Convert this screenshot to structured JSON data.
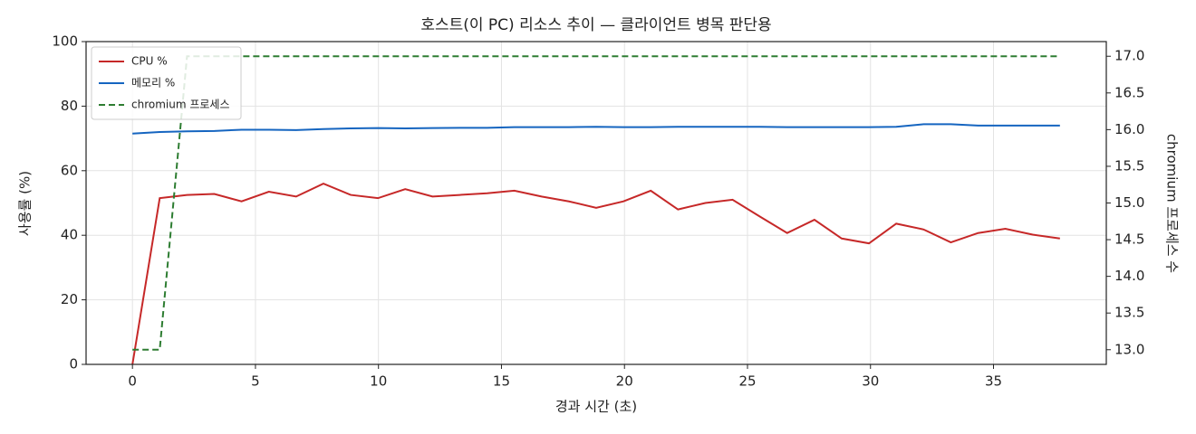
{
  "chart_data": {
    "type": "line",
    "title": "호스트(이 PC) 리소스 추이 — 클라이언트 병목 판단용",
    "xlabel": "경과 시간 (초)",
    "ylabel": "사용률 (%)",
    "y2label": "chromium 프로세스 수",
    "x": [
      0,
      1.109,
      2.218,
      3.326,
      4.435,
      5.544,
      6.653,
      7.762,
      8.871,
      9.979,
      11.088,
      12.197,
      13.306,
      14.415,
      15.524,
      16.632,
      17.741,
      18.85,
      19.959,
      21.068,
      22.176,
      23.285,
      24.394,
      25.503,
      26.612,
      27.721,
      28.829,
      29.938,
      31.047,
      32.156,
      33.265,
      34.374,
      35.482,
      36.591,
      37.7
    ],
    "series": [
      {
        "name": "CPU %",
        "color": "#c62828",
        "linestyle": "solid",
        "axis": "y",
        "values": [
          0,
          51.5,
          52.5,
          52.8,
          50.5,
          53.5,
          52,
          56,
          52.5,
          51.5,
          54.3,
          52,
          52.5,
          53,
          53.8,
          52,
          50.5,
          48.5,
          50.5,
          53.8,
          48,
          50,
          51,
          45.8,
          40.7,
          44.8,
          39,
          37.5,
          43.6,
          41.8,
          37.8,
          40.7,
          42,
          40.2,
          39
        ]
      },
      {
        "name": "메모리 %",
        "color": "#1565c0",
        "linestyle": "solid",
        "axis": "y",
        "values": [
          71.5,
          72,
          72.2,
          72.3,
          72.7,
          72.7,
          72.6,
          72.9,
          73.1,
          73.2,
          73.1,
          73.2,
          73.3,
          73.3,
          73.5,
          73.5,
          73.5,
          73.6,
          73.5,
          73.5,
          73.6,
          73.6,
          73.6,
          73.6,
          73.5,
          73.5,
          73.5,
          73.5,
          73.6,
          74.4,
          74.4,
          74,
          74,
          74,
          74
        ]
      },
      {
        "name": "chromium 프로세스",
        "color": "#2e7d32",
        "linestyle": "dashed",
        "axis": "y2",
        "values": [
          13,
          13,
          17,
          17,
          17,
          17,
          17,
          17,
          17,
          17,
          17,
          17,
          17,
          17,
          17,
          17,
          17,
          17,
          17,
          17,
          17,
          17,
          17,
          17,
          17,
          17,
          17,
          17,
          17,
          17,
          17,
          17,
          17,
          17,
          17
        ]
      }
    ],
    "xlim": [
      -1.885,
      39.585
    ],
    "xticks": [
      0,
      5,
      10,
      15,
      20,
      25,
      30,
      35
    ],
    "ylim": [
      0,
      100
    ],
    "yticks": [
      0,
      20,
      40,
      60,
      80,
      100
    ],
    "y2lim": [
      12.8,
      17.2
    ],
    "y2ticks": [
      {
        "value": 13,
        "label": "13.0"
      },
      {
        "value": 13.5,
        "label": "13.5"
      },
      {
        "value": 14,
        "label": "14.0"
      },
      {
        "value": 14.5,
        "label": "14.5"
      },
      {
        "value": 15,
        "label": "15.0"
      },
      {
        "value": 15.5,
        "label": "15.5"
      },
      {
        "value": 16,
        "label": "16.0"
      },
      {
        "value": 16.5,
        "label": "16.5"
      },
      {
        "value": 17,
        "label": "17.0"
      }
    ],
    "grid": true,
    "legend": "upper left"
  }
}
